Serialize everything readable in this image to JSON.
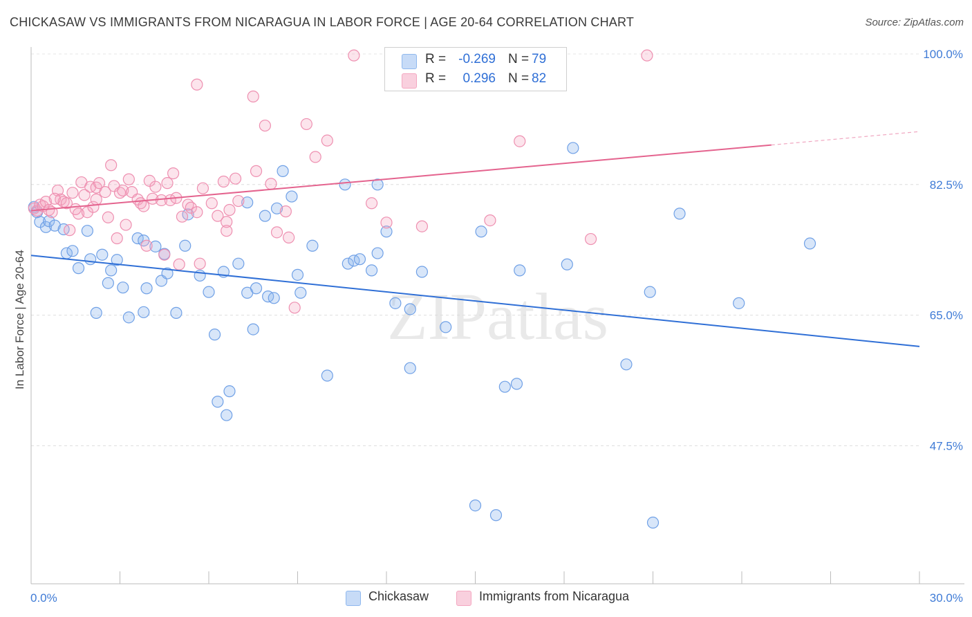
{
  "title": "CHICKASAW VS IMMIGRANTS FROM NICARAGUA IN LABOR FORCE | AGE 20-64 CORRELATION CHART",
  "source": "Source: ZipAtlas.com",
  "watermark": "ZIPatlas",
  "legend_top": [
    {
      "r_label": "R =",
      "r_value": "-0.269",
      "n_label": "N =",
      "n_value": "79"
    },
    {
      "r_label": "R =",
      "r_value": "0.296",
      "n_label": "N =",
      "n_value": "82"
    }
  ],
  "legend_bottom": [
    "Chickasaw",
    "Immigrants from Nicaragua"
  ],
  "colors": {
    "blue": "#8fb8ee",
    "blue_line": "#2f6fd6",
    "pink": "#f4a7c0",
    "pink_line": "#e4638e",
    "tick": "#3f7bd6"
  },
  "chart_data": {
    "type": "scatter",
    "title": "CHICKASAW VS IMMIGRANTS FROM NICARAGUA IN LABOR FORCE | AGE 20-64 CORRELATION CHART",
    "xlabel": "",
    "ylabel": "In Labor Force | Age 20-64",
    "xlim": [
      0,
      30
    ],
    "ylim": [
      29,
      100
    ],
    "x_tick_labels": [
      "0.0%",
      "30.0%"
    ],
    "y_ticks": [
      47.5,
      65.0,
      82.5,
      100.0
    ],
    "y_tick_labels": [
      "47.5%",
      "65.0%",
      "82.5%",
      "100.0%"
    ],
    "grid": true,
    "series": [
      {
        "name": "Chickasaw",
        "color": "#8fb8ee",
        "trend": {
          "x": [
            0,
            30
          ],
          "y": [
            73.0,
            60.8
          ]
        },
        "points": [
          [
            0.1,
            79.5
          ],
          [
            0.3,
            77.5
          ],
          [
            0.5,
            76.8
          ],
          [
            0.6,
            77.6
          ],
          [
            0.8,
            77.0
          ],
          [
            1.1,
            76.5
          ],
          [
            1.2,
            73.3
          ],
          [
            1.4,
            73.6
          ],
          [
            1.6,
            71.3
          ],
          [
            1.9,
            76.3
          ],
          [
            2.0,
            72.5
          ],
          [
            2.2,
            65.3
          ],
          [
            2.4,
            73.1
          ],
          [
            2.6,
            69.3
          ],
          [
            2.7,
            71.0
          ],
          [
            2.9,
            72.4
          ],
          [
            3.1,
            68.7
          ],
          [
            3.3,
            64.7
          ],
          [
            3.6,
            75.3
          ],
          [
            3.8,
            75.0
          ],
          [
            3.8,
            65.4
          ],
          [
            3.9,
            68.6
          ],
          [
            4.2,
            74.2
          ],
          [
            4.4,
            69.6
          ],
          [
            4.5,
            73.2
          ],
          [
            4.6,
            70.6
          ],
          [
            4.9,
            65.3
          ],
          [
            5.2,
            74.3
          ],
          [
            5.3,
            78.5
          ],
          [
            5.7,
            70.3
          ],
          [
            6.0,
            68.1
          ],
          [
            6.2,
            62.4
          ],
          [
            6.3,
            53.4
          ],
          [
            6.5,
            70.8
          ],
          [
            6.6,
            51.6
          ],
          [
            6.7,
            54.8
          ],
          [
            7.0,
            71.9
          ],
          [
            7.3,
            80.1
          ],
          [
            7.3,
            68.0
          ],
          [
            7.5,
            63.1
          ],
          [
            7.6,
            68.6
          ],
          [
            7.9,
            78.3
          ],
          [
            8.0,
            67.5
          ],
          [
            8.2,
            67.3
          ],
          [
            8.3,
            79.3
          ],
          [
            8.5,
            84.3
          ],
          [
            8.8,
            80.9
          ],
          [
            9.0,
            70.4
          ],
          [
            9.1,
            68.0
          ],
          [
            9.5,
            74.3
          ],
          [
            10.0,
            56.9
          ],
          [
            10.6,
            82.5
          ],
          [
            10.7,
            71.9
          ],
          [
            10.9,
            72.3
          ],
          [
            11.1,
            72.5
          ],
          [
            11.5,
            71.0
          ],
          [
            11.7,
            82.5
          ],
          [
            11.7,
            73.3
          ],
          [
            12.0,
            76.2
          ],
          [
            12.3,
            66.6
          ],
          [
            12.8,
            57.9
          ],
          [
            12.8,
            65.8
          ],
          [
            13.2,
            70.8
          ],
          [
            14.0,
            63.4
          ],
          [
            15.0,
            39.5
          ],
          [
            15.2,
            76.2
          ],
          [
            15.7,
            38.2
          ],
          [
            16.0,
            55.4
          ],
          [
            16.4,
            55.8
          ],
          [
            16.5,
            71.0
          ],
          [
            18.1,
            71.8
          ],
          [
            18.3,
            87.4
          ],
          [
            20.1,
            58.4
          ],
          [
            20.9,
            68.1
          ],
          [
            21.9,
            78.6
          ],
          [
            23.9,
            66.6
          ],
          [
            26.3,
            74.6
          ],
          [
            21.0,
            37.2
          ],
          [
            0.2,
            78.8
          ]
        ]
      },
      {
        "name": "Immigrants from Nicaragua",
        "color": "#f4a7c0",
        "trend": {
          "x": [
            0,
            25
          ],
          "y": [
            79.0,
            87.8
          ]
        },
        "trend_dashed": {
          "x": [
            25,
            30
          ],
          "y": [
            87.8,
            89.6
          ]
        },
        "points": [
          [
            0.1,
            79.3
          ],
          [
            0.2,
            79.0
          ],
          [
            0.3,
            79.8
          ],
          [
            0.4,
            79.6
          ],
          [
            0.5,
            80.2
          ],
          [
            0.6,
            79.1
          ],
          [
            0.7,
            78.8
          ],
          [
            0.9,
            81.7
          ],
          [
            1.0,
            80.5
          ],
          [
            1.1,
            80.2
          ],
          [
            1.2,
            80.0
          ],
          [
            1.3,
            76.4
          ],
          [
            1.4,
            81.4
          ],
          [
            1.6,
            78.6
          ],
          [
            1.7,
            82.8
          ],
          [
            1.8,
            81.1
          ],
          [
            1.9,
            78.8
          ],
          [
            2.0,
            82.2
          ],
          [
            2.1,
            79.5
          ],
          [
            2.2,
            82.1
          ],
          [
            2.3,
            82.7
          ],
          [
            2.5,
            81.5
          ],
          [
            2.6,
            78.1
          ],
          [
            2.7,
            85.1
          ],
          [
            2.8,
            82.3
          ],
          [
            2.9,
            75.3
          ],
          [
            3.0,
            81.4
          ],
          [
            3.1,
            81.7
          ],
          [
            3.2,
            77.1
          ],
          [
            3.3,
            83.2
          ],
          [
            3.4,
            81.5
          ],
          [
            3.6,
            80.5
          ],
          [
            3.7,
            80.0
          ],
          [
            3.8,
            79.6
          ],
          [
            3.9,
            74.3
          ],
          [
            4.0,
            83.0
          ],
          [
            4.1,
            80.6
          ],
          [
            4.2,
            82.2
          ],
          [
            4.4,
            80.4
          ],
          [
            4.5,
            73.1
          ],
          [
            4.6,
            82.7
          ],
          [
            4.7,
            80.4
          ],
          [
            4.8,
            84.0
          ],
          [
            4.9,
            80.7
          ],
          [
            5.0,
            71.8
          ],
          [
            5.1,
            78.2
          ],
          [
            5.3,
            79.8
          ],
          [
            5.4,
            79.4
          ],
          [
            5.6,
            78.8
          ],
          [
            5.7,
            71.9
          ],
          [
            5.8,
            82.0
          ],
          [
            6.1,
            80.0
          ],
          [
            6.3,
            78.3
          ],
          [
            6.5,
            82.9
          ],
          [
            6.6,
            77.5
          ],
          [
            6.6,
            76.3
          ],
          [
            6.7,
            79.1
          ],
          [
            6.9,
            83.3
          ],
          [
            7.0,
            80.3
          ],
          [
            7.5,
            94.3
          ],
          [
            7.6,
            84.3
          ],
          [
            7.9,
            90.4
          ],
          [
            8.1,
            82.6
          ],
          [
            8.3,
            76.1
          ],
          [
            8.6,
            78.9
          ],
          [
            8.7,
            75.4
          ],
          [
            8.9,
            66.0
          ],
          [
            9.3,
            90.6
          ],
          [
            9.6,
            86.2
          ],
          [
            10.0,
            88.4
          ],
          [
            10.9,
            99.8
          ],
          [
            12.0,
            77.4
          ],
          [
            13.2,
            76.9
          ],
          [
            15.5,
            77.7
          ],
          [
            16.5,
            88.3
          ],
          [
            18.9,
            75.2
          ],
          [
            20.8,
            99.8
          ],
          [
            5.6,
            95.9
          ],
          [
            11.5,
            80.0
          ],
          [
            2.2,
            80.5
          ],
          [
            0.8,
            80.6
          ],
          [
            1.5,
            79.2
          ]
        ]
      }
    ]
  }
}
